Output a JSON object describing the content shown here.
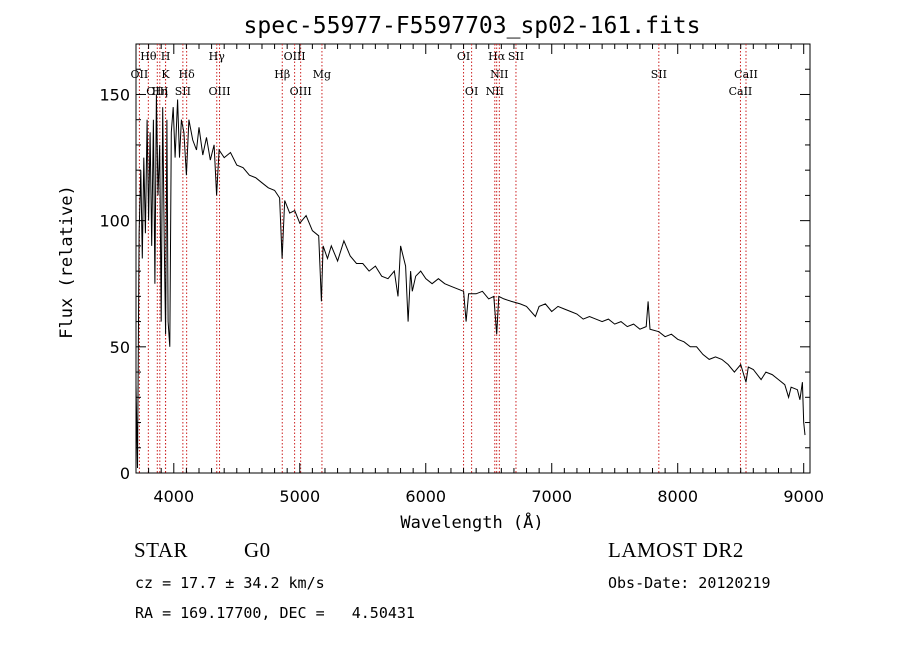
{
  "chart_data": {
    "type": "line",
    "title": "spec-55977-F5597703_sp02-161.fits",
    "xlabel": "Wavelength (Å)",
    "ylabel": "Flux (relative)",
    "xlim": [
      3700,
      9050
    ],
    "ylim": [
      0,
      170
    ],
    "xticks": [
      4000,
      5000,
      6000,
      7000,
      8000,
      9000
    ],
    "yticks": [
      0,
      50,
      100,
      150
    ],
    "series": [
      {
        "name": "flux",
        "points": [
          [
            3700,
            35
          ],
          [
            3712,
            2
          ],
          [
            3725,
            95
          ],
          [
            3738,
            120
          ],
          [
            3750,
            85
          ],
          [
            3762,
            125
          ],
          [
            3775,
            95
          ],
          [
            3788,
            140
          ],
          [
            3800,
            100
          ],
          [
            3812,
            135
          ],
          [
            3825,
            90
          ],
          [
            3838,
            140
          ],
          [
            3850,
            75
          ],
          [
            3862,
            150
          ],
          [
            3875,
            110
          ],
          [
            3888,
            130
          ],
          [
            3900,
            60
          ],
          [
            3912,
            145
          ],
          [
            3925,
            90
          ],
          [
            3935,
            55
          ],
          [
            3945,
            140
          ],
          [
            3955,
            60
          ],
          [
            3968,
            50
          ],
          [
            3980,
            135
          ],
          [
            3995,
            145
          ],
          [
            4010,
            125
          ],
          [
            4030,
            148
          ],
          [
            4045,
            125
          ],
          [
            4060,
            140
          ],
          [
            4080,
            135
          ],
          [
            4100,
            118
          ],
          [
            4120,
            140
          ],
          [
            4150,
            132
          ],
          [
            4180,
            128
          ],
          [
            4200,
            137
          ],
          [
            4230,
            126
          ],
          [
            4260,
            133
          ],
          [
            4290,
            124
          ],
          [
            4320,
            130
          ],
          [
            4340,
            110
          ],
          [
            4360,
            128
          ],
          [
            4400,
            125
          ],
          [
            4450,
            127
          ],
          [
            4500,
            122
          ],
          [
            4550,
            121
          ],
          [
            4600,
            118
          ],
          [
            4650,
            117
          ],
          [
            4700,
            115
          ],
          [
            4750,
            113
          ],
          [
            4800,
            112
          ],
          [
            4840,
            109
          ],
          [
            4860,
            85
          ],
          [
            4880,
            108
          ],
          [
            4920,
            103
          ],
          [
            4960,
            104
          ],
          [
            5000,
            99
          ],
          [
            5050,
            102
          ],
          [
            5100,
            96
          ],
          [
            5150,
            94
          ],
          [
            5172,
            68
          ],
          [
            5185,
            90
          ],
          [
            5220,
            85
          ],
          [
            5250,
            90
          ],
          [
            5300,
            84
          ],
          [
            5350,
            92
          ],
          [
            5400,
            86
          ],
          [
            5450,
            83
          ],
          [
            5500,
            83
          ],
          [
            5550,
            80
          ],
          [
            5600,
            82
          ],
          [
            5650,
            78
          ],
          [
            5700,
            77
          ],
          [
            5750,
            80
          ],
          [
            5780,
            70
          ],
          [
            5800,
            90
          ],
          [
            5840,
            82
          ],
          [
            5860,
            60
          ],
          [
            5880,
            80
          ],
          [
            5893,
            72
          ],
          [
            5920,
            78
          ],
          [
            5960,
            80
          ],
          [
            6000,
            77
          ],
          [
            6050,
            75
          ],
          [
            6100,
            77
          ],
          [
            6150,
            75
          ],
          [
            6200,
            74
          ],
          [
            6250,
            73
          ],
          [
            6300,
            72
          ],
          [
            6320,
            60
          ],
          [
            6340,
            71
          ],
          [
            6400,
            71
          ],
          [
            6450,
            72
          ],
          [
            6500,
            69
          ],
          [
            6540,
            70
          ],
          [
            6563,
            55
          ],
          [
            6580,
            70
          ],
          [
            6620,
            69
          ],
          [
            6680,
            68
          ],
          [
            6750,
            67
          ],
          [
            6800,
            66
          ],
          [
            6870,
            62
          ],
          [
            6900,
            66
          ],
          [
            6950,
            67
          ],
          [
            7000,
            64
          ],
          [
            7050,
            66
          ],
          [
            7100,
            65
          ],
          [
            7150,
            64
          ],
          [
            7200,
            63
          ],
          [
            7250,
            61
          ],
          [
            7300,
            62
          ],
          [
            7350,
            61
          ],
          [
            7400,
            60
          ],
          [
            7450,
            61
          ],
          [
            7500,
            59
          ],
          [
            7550,
            60
          ],
          [
            7600,
            58
          ],
          [
            7650,
            59
          ],
          [
            7700,
            57
          ],
          [
            7750,
            58
          ],
          [
            7765,
            68
          ],
          [
            7780,
            57
          ],
          [
            7850,
            56
          ],
          [
            7900,
            54
          ],
          [
            7950,
            55
          ],
          [
            8000,
            53
          ],
          [
            8050,
            52
          ],
          [
            8100,
            50
          ],
          [
            8150,
            50
          ],
          [
            8200,
            47
          ],
          [
            8250,
            45
          ],
          [
            8300,
            46
          ],
          [
            8350,
            45
          ],
          [
            8400,
            43
          ],
          [
            8450,
            40
          ],
          [
            8500,
            43
          ],
          [
            8542,
            36
          ],
          [
            8560,
            42
          ],
          [
            8600,
            41
          ],
          [
            8662,
            37
          ],
          [
            8700,
            40
          ],
          [
            8750,
            39
          ],
          [
            8800,
            37
          ],
          [
            8850,
            35
          ],
          [
            8880,
            30
          ],
          [
            8900,
            34
          ],
          [
            8950,
            33
          ],
          [
            8970,
            29
          ],
          [
            8990,
            36
          ],
          [
            9000,
            20
          ],
          [
            9010,
            15
          ]
        ]
      }
    ],
    "line_marks": [
      {
        "label": "OII",
        "wl": 3727,
        "row": 1
      },
      {
        "label": "Hθ",
        "wl": 3798,
        "row": 0
      },
      {
        "label": "OIII",
        "wl": 3869,
        "row": 2
      },
      {
        "label": "H",
        "wl": 3935,
        "row": 0
      },
      {
        "label": "K",
        "wl": 3934,
        "row": 1
      },
      {
        "label": "Hη",
        "wl": 3889,
        "row": 2
      },
      {
        "label": "Hδ",
        "wl": 4102,
        "row": 1
      },
      {
        "label": "SII",
        "wl": 4072,
        "row": 2
      },
      {
        "label": "Hγ",
        "wl": 4341,
        "row": 0
      },
      {
        "label": "OIII",
        "wl": 4363,
        "row": 2
      },
      {
        "label": "OIII",
        "wl": 4959,
        "row": 0
      },
      {
        "label": "Hβ",
        "wl": 4861,
        "row": 1
      },
      {
        "label": "OIII",
        "wl": 5007,
        "row": 2
      },
      {
        "label": "Mg",
        "wl": 5176,
        "row": 1
      },
      {
        "label": "OI",
        "wl": 6300,
        "row": 0
      },
      {
        "label": "OI",
        "wl": 6364,
        "row": 2
      },
      {
        "label": "Hα",
        "wl": 6563,
        "row": 0
      },
      {
        "label": "SII",
        "wl": 6716,
        "row": 0
      },
      {
        "label": "NII",
        "wl": 6584,
        "row": 1
      },
      {
        "label": "NII",
        "wl": 6548,
        "row": 2
      },
      {
        "label": "SII",
        "wl": 7850,
        "row": 1
      },
      {
        "label": "CaII",
        "wl": 8542,
        "row": 1
      },
      {
        "label": "CaII",
        "wl": 8498,
        "row": 2
      }
    ]
  },
  "info": {
    "object_class": "STAR",
    "subclass": "G0",
    "survey": "LAMOST DR2",
    "cz": "cz = 17.7 ± 34.2 km/s",
    "obs_date": "Obs-Date: 20120219",
    "coords": "RA = 169.17700, DEC =   4.50431"
  },
  "colors": {
    "line_marker": "#cc2222",
    "spectrum": "#000000"
  }
}
